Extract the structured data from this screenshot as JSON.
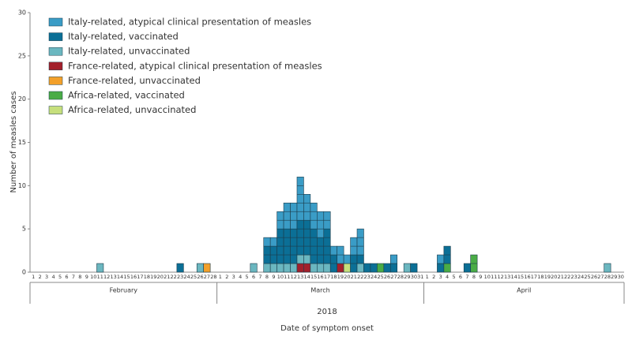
{
  "chart_data": {
    "type": "bar",
    "stacked": true,
    "y_label": "Number of measles cases",
    "x_label": "Date of symptom onset",
    "year_label": "2018",
    "groups": [
      "February",
      "March",
      "April"
    ],
    "categories": [
      "1",
      "2",
      "3",
      "4",
      "5",
      "6",
      "7",
      "8",
      "9",
      "10",
      "11",
      "12",
      "13",
      "14",
      "15",
      "16",
      "17",
      "18",
      "19",
      "20",
      "21",
      "22",
      "23",
      "24",
      "25",
      "26",
      "27",
      "28",
      "1",
      "2",
      "3",
      "4",
      "5",
      "6",
      "7",
      "8",
      "9",
      "10",
      "11",
      "12",
      "13",
      "14",
      "15",
      "16",
      "17",
      "18",
      "19",
      "20",
      "21",
      "22",
      "23",
      "24",
      "25",
      "26",
      "27",
      "28",
      "29",
      "30",
      "31",
      "1",
      "2",
      "3",
      "4",
      "5",
      "6",
      "7",
      "8",
      "9",
      "10",
      "11",
      "12",
      "13",
      "14",
      "15",
      "16",
      "17",
      "18",
      "19",
      "20",
      "21",
      "22",
      "23",
      "24",
      "25",
      "26",
      "27",
      "28",
      "29",
      "30"
    ],
    "ylim": [
      0,
      30
    ],
    "yticks": [
      0,
      5,
      10,
      15,
      20,
      25,
      30
    ],
    "series": [
      {
        "name": "Italy-related, atypical clinical presentation of measles",
        "color": "#3a9cc6",
        "values": [
          0,
          0,
          0,
          0,
          0,
          0,
          0,
          0,
          0,
          0,
          0,
          0,
          0,
          0,
          0,
          0,
          0,
          0,
          0,
          0,
          0,
          0,
          0,
          0,
          0,
          0,
          0,
          0,
          0,
          0,
          0,
          0,
          0,
          0,
          0,
          1,
          1,
          2,
          3,
          3,
          5,
          3,
          3,
          3,
          2,
          1,
          2,
          1,
          2,
          3,
          0,
          0,
          0,
          0,
          1,
          0,
          0,
          0,
          0,
          0,
          0,
          1,
          0,
          0,
          0,
          0,
          0,
          0,
          0,
          0,
          0,
          0,
          0,
          0,
          0,
          0,
          0,
          0,
          0,
          0,
          0,
          0,
          0,
          0,
          0,
          0,
          0,
          0,
          0
        ]
      },
      {
        "name": "Italy-related, vaccinated",
        "color": "#0b6f96",
        "values": [
          0,
          0,
          0,
          0,
          0,
          0,
          0,
          0,
          0,
          0,
          0,
          0,
          0,
          0,
          0,
          0,
          0,
          0,
          0,
          0,
          0,
          0,
          1,
          0,
          0,
          0,
          0,
          0,
          0,
          0,
          0,
          0,
          0,
          0,
          0,
          2,
          2,
          4,
          4,
          4,
          4,
          4,
          4,
          3,
          4,
          2,
          0,
          0,
          2,
          1,
          1,
          1,
          0,
          1,
          1,
          0,
          0,
          1,
          0,
          0,
          0,
          1,
          2,
          0,
          0,
          1,
          0,
          0,
          0,
          0,
          0,
          0,
          0,
          0,
          0,
          0,
          0,
          0,
          0,
          0,
          0,
          0,
          0,
          0,
          0,
          0,
          0,
          0,
          0
        ]
      },
      {
        "name": "Italy-related, unvaccinated",
        "color": "#6bb7c0",
        "values": [
          0,
          0,
          0,
          0,
          0,
          0,
          0,
          0,
          0,
          0,
          1,
          0,
          0,
          0,
          0,
          0,
          0,
          0,
          0,
          0,
          0,
          0,
          0,
          0,
          0,
          1,
          0,
          0,
          0,
          0,
          0,
          0,
          0,
          1,
          0,
          1,
          1,
          1,
          1,
          1,
          1,
          1,
          1,
          1,
          1,
          0,
          0,
          0,
          0,
          1,
          0,
          0,
          0,
          0,
          0,
          0,
          1,
          0,
          0,
          0,
          0,
          0,
          0,
          0,
          0,
          0,
          0,
          0,
          0,
          0,
          0,
          0,
          0,
          0,
          0,
          0,
          0,
          0,
          0,
          0,
          0,
          0,
          0,
          0,
          0,
          0,
          1,
          0,
          0
        ]
      },
      {
        "name": "France-related, atypical clinical presentation of measles",
        "color": "#a3202b",
        "values": [
          0,
          0,
          0,
          0,
          0,
          0,
          0,
          0,
          0,
          0,
          0,
          0,
          0,
          0,
          0,
          0,
          0,
          0,
          0,
          0,
          0,
          0,
          0,
          0,
          0,
          0,
          0,
          0,
          0,
          0,
          0,
          0,
          0,
          0,
          0,
          0,
          0,
          0,
          0,
          0,
          1,
          1,
          0,
          0,
          0,
          0,
          1,
          0,
          0,
          0,
          0,
          0,
          0,
          0,
          0,
          0,
          0,
          0,
          0,
          0,
          0,
          0,
          0,
          0,
          0,
          0,
          0,
          0,
          0,
          0,
          0,
          0,
          0,
          0,
          0,
          0,
          0,
          0,
          0,
          0,
          0,
          0,
          0,
          0,
          0,
          0,
          0,
          0,
          0
        ]
      },
      {
        "name": "France-related, unvaccinated",
        "color": "#f3a02a",
        "values": [
          0,
          0,
          0,
          0,
          0,
          0,
          0,
          0,
          0,
          0,
          0,
          0,
          0,
          0,
          0,
          0,
          0,
          0,
          0,
          0,
          0,
          0,
          0,
          0,
          0,
          0,
          1,
          0,
          0,
          0,
          0,
          0,
          0,
          0,
          0,
          0,
          0,
          0,
          0,
          0,
          0,
          0,
          0,
          0,
          0,
          0,
          0,
          0,
          0,
          0,
          0,
          0,
          0,
          0,
          0,
          0,
          0,
          0,
          0,
          0,
          0,
          0,
          0,
          0,
          0,
          0,
          0,
          0,
          0,
          0,
          0,
          0,
          0,
          0,
          0,
          0,
          0,
          0,
          0,
          0,
          0,
          0,
          0,
          0,
          0,
          0,
          0,
          0,
          0
        ]
      },
      {
        "name": "Africa-related, vaccinated",
        "color": "#4aac46",
        "values": [
          0,
          0,
          0,
          0,
          0,
          0,
          0,
          0,
          0,
          0,
          0,
          0,
          0,
          0,
          0,
          0,
          0,
          0,
          0,
          0,
          0,
          0,
          0,
          0,
          0,
          0,
          0,
          0,
          0,
          0,
          0,
          0,
          0,
          0,
          0,
          0,
          0,
          0,
          0,
          0,
          0,
          0,
          0,
          0,
          0,
          0,
          0,
          0,
          0,
          0,
          0,
          0,
          1,
          0,
          0,
          0,
          0,
          0,
          0,
          0,
          0,
          0,
          1,
          0,
          0,
          0,
          2,
          0,
          0,
          0,
          0,
          0,
          0,
          0,
          0,
          0,
          0,
          0,
          0,
          0,
          0,
          0,
          0,
          0,
          0,
          0,
          0,
          0,
          0
        ]
      },
      {
        "name": "Africa-related, unvaccinated",
        "color": "#c6df7c",
        "values": [
          0,
          0,
          0,
          0,
          0,
          0,
          0,
          0,
          0,
          0,
          0,
          0,
          0,
          0,
          0,
          0,
          0,
          0,
          0,
          0,
          0,
          0,
          0,
          0,
          0,
          0,
          0,
          0,
          0,
          0,
          0,
          0,
          0,
          0,
          0,
          0,
          0,
          0,
          0,
          0,
          0,
          0,
          0,
          0,
          0,
          0,
          0,
          1,
          0,
          0,
          0,
          0,
          0,
          0,
          0,
          0,
          0,
          0,
          0,
          0,
          0,
          0,
          0,
          0,
          0,
          0,
          0,
          0,
          0,
          0,
          0,
          0,
          0,
          0,
          0,
          0,
          0,
          0,
          0,
          0,
          0,
          0,
          0,
          0,
          0,
          0,
          0,
          0,
          0
        ]
      }
    ]
  }
}
